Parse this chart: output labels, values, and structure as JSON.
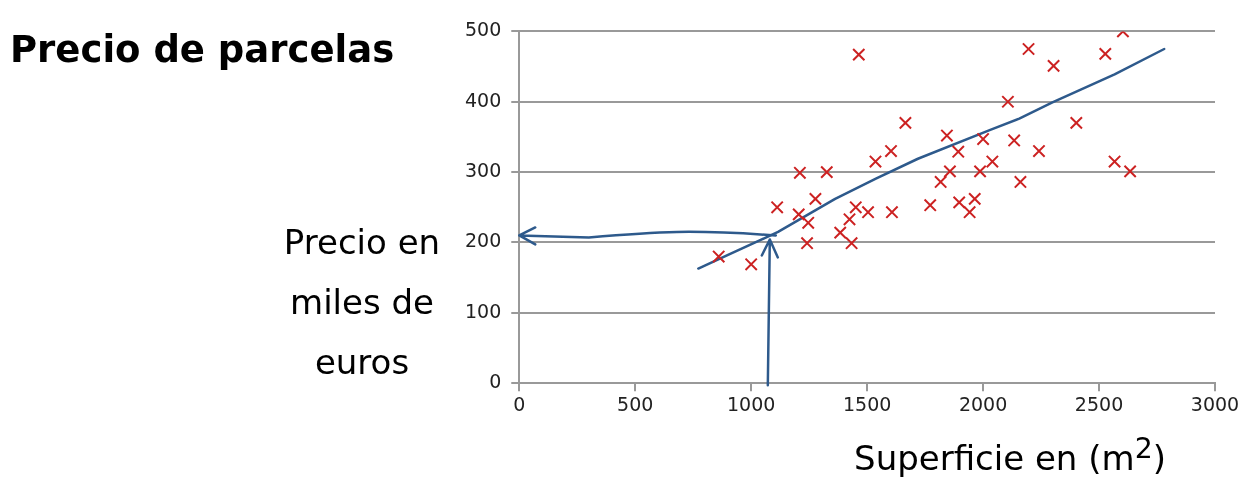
{
  "chart_data": {
    "type": "scatter",
    "title": "Precio de parcelas",
    "xlabel": "Superficie en (m$^{2}$)",
    "ylabel": "Precio en miles de euros",
    "xlim": [
      0,
      3000
    ],
    "xticks": [
      0,
      500,
      1000,
      1500,
      2000,
      2500,
      3000
    ],
    "ylim": [
      0,
      500
    ],
    "yticks": [
      0,
      100,
      200,
      300,
      400,
      500
    ],
    "grid": "y",
    "marker": "cross",
    "series": [
      {
        "color": "#cc2222",
        "x": [
          860,
          1000,
          1112,
          1210,
          1326,
          1205,
          1277,
          1246,
          1241,
          1384,
          1433,
          1424,
          1451,
          1504,
          1607,
          1536,
          1603,
          1464,
          1665,
          1772,
          2603,
          2196,
          2304,
          2527,
          2107,
          2402,
          1844,
          2000,
          2134,
          1893,
          2241,
          2040,
          1857,
          1987,
          1817,
          2161,
          2567,
          2634,
          1897,
          1964,
          1942
        ],
        "values": [
          180,
          169,
          250,
          299,
          300,
          240,
          262,
          228,
          199,
          214,
          199,
          233,
          250,
          243,
          243,
          315,
          330,
          467,
          370,
          253,
          500,
          475,
          451,
          468,
          400,
          370,
          352,
          347,
          345,
          329,
          330,
          315,
          301,
          301,
          286,
          286,
          315,
          301,
          257,
          262,
          243
        ]
      },
      {
        "type": "line",
        "color": "#2e5a8c",
        "marker": "none",
        "x": [
          772,
          1116,
          1362,
          1540,
          1719,
          2031,
          2156,
          2299,
          2567,
          2781
        ],
        "values": [
          163,
          215,
          262,
          291,
          319,
          360,
          376,
          399,
          439,
          475
        ]
      }
    ]
  }
}
